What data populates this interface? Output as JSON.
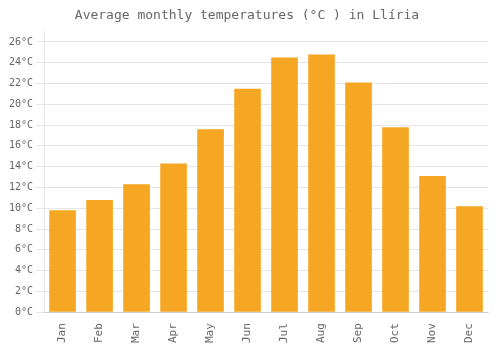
{
  "chart_data": {
    "type": "bar",
    "title": "Average monthly temperatures (°C ) in Llíria",
    "categories": [
      "Jan",
      "Feb",
      "Mar",
      "Apr",
      "May",
      "Jun",
      "Jul",
      "Aug",
      "Sep",
      "Oct",
      "Nov",
      "Dec"
    ],
    "values": [
      9.8,
      10.8,
      12.3,
      14.3,
      17.6,
      21.5,
      24.5,
      24.8,
      22.1,
      17.8,
      13.1,
      10.2
    ],
    "color": "#F5A623",
    "ylim": [
      0,
      27
    ],
    "yticks": [
      {
        "value": 0,
        "label": "0°C"
      },
      {
        "value": 2,
        "label": "2°C"
      },
      {
        "value": 4,
        "label": "4°C"
      },
      {
        "value": 6,
        "label": "6°C"
      },
      {
        "value": 8,
        "label": "8°C"
      },
      {
        "value": 10,
        "label": "10°C"
      },
      {
        "value": 12,
        "label": "12°C"
      },
      {
        "value": 14,
        "label": "14°C"
      },
      {
        "value": 16,
        "label": "16°C"
      },
      {
        "value": 18,
        "label": "18°C"
      },
      {
        "value": 20,
        "label": "20°C"
      },
      {
        "value": 22,
        "label": "22°C"
      },
      {
        "value": 24,
        "label": "24°C"
      },
      {
        "value": 26,
        "label": "26°C"
      }
    ],
    "grid": true
  }
}
